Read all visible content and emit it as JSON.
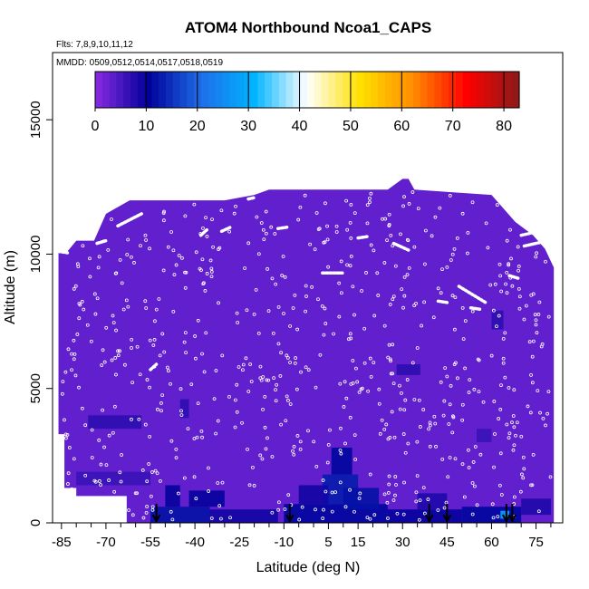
{
  "chart_data": {
    "type": "heatmap",
    "title": "ATOM4 Northbound Ncoa1_CAPS",
    "flights_note": "Flts: 7,8,9,10,11,12",
    "dates_note": "MMDD: 0509,0512,0514,0517,0518,0519",
    "xlabel": "Latitude (deg N)",
    "ylabel": "Altitude (m)",
    "xlim": [
      -88,
      84
    ],
    "ylim": [
      0,
      17500
    ],
    "x_ticks": [
      -85,
      -70,
      -55,
      -40,
      -25,
      -10,
      5,
      15,
      30,
      45,
      60,
      75
    ],
    "x_minor_ticks": [
      -80,
      -75,
      -65,
      -60,
      -50,
      -45,
      -35,
      -30,
      -20,
      -15,
      -5,
      0,
      10,
      20,
      25,
      35,
      40,
      50,
      55,
      65,
      70,
      80
    ],
    "y_ticks": [
      0,
      5000,
      10000,
      15000
    ],
    "colorbar": {
      "ticks": [
        0,
        10,
        20,
        30,
        40,
        50,
        60,
        70,
        80
      ],
      "range": [
        0,
        83
      ],
      "colors": [
        "#8a2be2",
        "#00009a",
        "#1e6ee8",
        "#00b4ff",
        "#ffffff",
        "#ffe000",
        "#ff8c00",
        "#ff0000",
        "#8b1a1a"
      ]
    },
    "background_value": 3,
    "coverage_top": [
      {
        "lat": -86,
        "alt": 10100
      },
      {
        "lat": -83,
        "alt": 10100
      },
      {
        "lat": -80,
        "alt": 10500
      },
      {
        "lat": -74,
        "alt": 10500
      },
      {
        "lat": -70,
        "alt": 11500
      },
      {
        "lat": -62,
        "alt": 12000
      },
      {
        "lat": -48,
        "alt": 12000
      },
      {
        "lat": -30,
        "alt": 12000
      },
      {
        "lat": -20,
        "alt": 12200
      },
      {
        "lat": -15,
        "alt": 12400
      },
      {
        "lat": 25,
        "alt": 12400
      },
      {
        "lat": 30,
        "alt": 12800
      },
      {
        "lat": 32,
        "alt": 12800
      },
      {
        "lat": 34,
        "alt": 12400
      },
      {
        "lat": 60,
        "alt": 12200
      },
      {
        "lat": 64,
        "alt": 11700
      },
      {
        "lat": 68,
        "alt": 11200
      },
      {
        "lat": 74,
        "alt": 10700
      },
      {
        "lat": 78,
        "alt": 10200
      },
      {
        "lat": 81,
        "alt": 9500
      },
      {
        "lat": 81,
        "alt": 0
      }
    ],
    "coverage_left_bottom": [
      {
        "lat": -86,
        "alt": 0
      },
      {
        "lat": -86,
        "alt": 3300
      },
      {
        "lat": -84,
        "alt": 3300
      },
      {
        "lat": -84,
        "alt": 1300
      },
      {
        "lat": -80,
        "alt": 1300
      },
      {
        "lat": -80,
        "alt": 1000
      },
      {
        "lat": -63,
        "alt": 1000
      },
      {
        "lat": -63,
        "alt": 0
      }
    ],
    "cells": [
      {
        "lat0": -76,
        "lat1": -58,
        "alt0": 3500,
        "alt1": 4000,
        "value": 7
      },
      {
        "lat0": -80,
        "lat1": -55,
        "alt0": 1400,
        "alt1": 1900,
        "value": 6
      },
      {
        "lat0": -55,
        "lat1": -35,
        "alt0": 0,
        "alt1": 600,
        "value": 12
      },
      {
        "lat0": -50,
        "lat1": -45,
        "alt0": 600,
        "alt1": 1400,
        "value": 10
      },
      {
        "lat0": -42,
        "lat1": -30,
        "alt0": 600,
        "alt1": 1200,
        "value": 10
      },
      {
        "lat0": -35,
        "lat1": -12,
        "alt0": 0,
        "alt1": 500,
        "value": 9
      },
      {
        "lat0": -10,
        "lat1": 25,
        "alt0": 0,
        "alt1": 700,
        "value": 11
      },
      {
        "lat0": 3,
        "lat1": 15,
        "alt0": 700,
        "alt1": 1800,
        "value": 13
      },
      {
        "lat0": 6,
        "lat1": 13,
        "alt0": 1800,
        "alt1": 2800,
        "value": 11
      },
      {
        "lat0": 10,
        "lat1": 22,
        "alt0": 500,
        "alt1": 1300,
        "value": 12
      },
      {
        "lat0": -5,
        "lat1": 5,
        "alt0": 700,
        "alt1": 1400,
        "value": 9
      },
      {
        "lat0": 25,
        "lat1": 50,
        "alt0": 0,
        "alt1": 500,
        "value": 10
      },
      {
        "lat0": 35,
        "lat1": 45,
        "alt0": 500,
        "alt1": 1100,
        "value": 8
      },
      {
        "lat0": 50,
        "lat1": 70,
        "alt0": 0,
        "alt1": 600,
        "value": 11
      },
      {
        "lat0": 63,
        "lat1": 66,
        "alt0": 150,
        "alt1": 450,
        "value": 28
      },
      {
        "lat0": 70,
        "lat1": 80,
        "alt0": 300,
        "alt1": 900,
        "value": 8
      },
      {
        "lat0": -45,
        "lat1": -42,
        "alt0": 3900,
        "alt1": 4600,
        "value": 7
      },
      {
        "lat0": 28,
        "lat1": 36,
        "alt0": 5500,
        "alt1": 5900,
        "value": 7
      },
      {
        "lat0": 60,
        "lat1": 64,
        "alt0": 7200,
        "alt1": 7900,
        "value": 7
      },
      {
        "lat0": 55,
        "lat1": 60,
        "alt0": 3000,
        "alt1": 3500,
        "value": 6
      }
    ],
    "flight_tracks": [
      [
        [
          -86,
          10100
        ],
        [
          -83,
          10050
        ]
      ],
      [
        [
          -73,
          10400
        ],
        [
          -70,
          10500
        ]
      ],
      [
        [
          -66,
          11050
        ],
        [
          -58,
          11500
        ]
      ],
      [
        [
          -38,
          10700
        ],
        [
          -36,
          10900
        ]
      ],
      [
        [
          -31,
          10850
        ],
        [
          -28,
          11000
        ]
      ],
      [
        [
          -22,
          12050
        ],
        [
          -20,
          12100
        ]
      ],
      [
        [
          -12,
          10950
        ],
        [
          -9,
          11000
        ]
      ],
      [
        [
          3,
          9300
        ],
        [
          10,
          9300
        ]
      ],
      [
        [
          15,
          10600
        ],
        [
          18,
          10650
        ]
      ],
      [
        [
          27,
          10400
        ],
        [
          32,
          10150
        ]
      ],
      [
        [
          33,
          12850
        ],
        [
          34,
          12950
        ]
      ],
      [
        [
          49,
          8800
        ],
        [
          58,
          8200
        ]
      ],
      [
        [
          42,
          8250
        ],
        [
          45,
          8200
        ]
      ],
      [
        [
          53,
          8000
        ],
        [
          56,
          7950
        ]
      ],
      [
        [
          66,
          9200
        ],
        [
          69,
          9100
        ]
      ],
      [
        [
          70,
          10700
        ],
        [
          78,
          10900
        ]
      ],
      [
        [
          71,
          10300
        ],
        [
          77,
          10450
        ]
      ],
      [
        [
          -55,
          5700
        ],
        [
          -53,
          5900
        ]
      ]
    ],
    "profile_markers": [
      -53,
      -8,
      39,
      45,
      65,
      67
    ]
  }
}
